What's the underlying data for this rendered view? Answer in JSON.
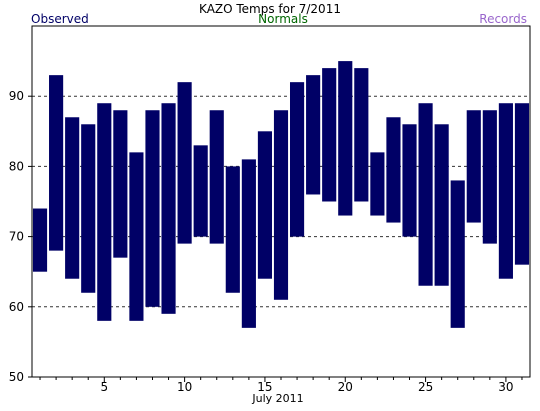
{
  "chart_data": {
    "type": "bar",
    "title": "KAZO Temps for  7/2011",
    "legend": {
      "observed": "Observed",
      "normals": "Normals",
      "records": "Records"
    },
    "xlabel": "July 2011",
    "ylabel": "",
    "xlim": [
      0.5,
      31.5
    ],
    "ylim": [
      50,
      100
    ],
    "y_ticks": [
      50,
      60,
      70,
      80,
      90
    ],
    "x_ticks": [
      5,
      10,
      15,
      20,
      25,
      30
    ],
    "grid_y": [
      60,
      70,
      80,
      90
    ],
    "colors": {
      "bar": "#000066",
      "observed_label": "#000066",
      "normals_label": "#006600",
      "records_label": "#9966cc",
      "grid": "#333333",
      "text": "#000000"
    },
    "series": [
      {
        "name": "Observed",
        "ranges": [
          {
            "day": 1,
            "low": 65,
            "high": 74
          },
          {
            "day": 2,
            "low": 68,
            "high": 93
          },
          {
            "day": 3,
            "low": 64,
            "high": 87
          },
          {
            "day": 4,
            "low": 62,
            "high": 86
          },
          {
            "day": 5,
            "low": 58,
            "high": 89
          },
          {
            "day": 6,
            "low": 67,
            "high": 88
          },
          {
            "day": 7,
            "low": 58,
            "high": 82
          },
          {
            "day": 8,
            "low": 60,
            "high": 88
          },
          {
            "day": 9,
            "low": 59,
            "high": 89
          },
          {
            "day": 10,
            "low": 69,
            "high": 92
          },
          {
            "day": 11,
            "low": 70,
            "high": 83
          },
          {
            "day": 12,
            "low": 69,
            "high": 88
          },
          {
            "day": 13,
            "low": 62,
            "high": 80
          },
          {
            "day": 14,
            "low": 57,
            "high": 81
          },
          {
            "day": 15,
            "low": 64,
            "high": 85
          },
          {
            "day": 16,
            "low": 61,
            "high": 88
          },
          {
            "day": 17,
            "low": 70,
            "high": 92
          },
          {
            "day": 18,
            "low": 76,
            "high": 93
          },
          {
            "day": 19,
            "low": 75,
            "high": 94
          },
          {
            "day": 20,
            "low": 73,
            "high": 95
          },
          {
            "day": 21,
            "low": 75,
            "high": 94
          },
          {
            "day": 22,
            "low": 73,
            "high": 82
          },
          {
            "day": 23,
            "low": 72,
            "high": 87
          },
          {
            "day": 24,
            "low": 70,
            "high": 86
          },
          {
            "day": 25,
            "low": 63,
            "high": 89
          },
          {
            "day": 26,
            "low": 63,
            "high": 86
          },
          {
            "day": 27,
            "low": 57,
            "high": 78
          },
          {
            "day": 28,
            "low": 72,
            "high": 88
          },
          {
            "day": 29,
            "low": 69,
            "high": 88
          },
          {
            "day": 30,
            "low": 64,
            "high": 89
          },
          {
            "day": 31,
            "low": 66,
            "high": 89
          }
        ]
      }
    ]
  }
}
